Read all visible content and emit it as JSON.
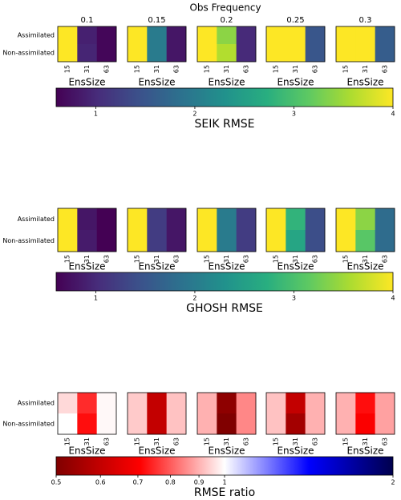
{
  "chart_data": [
    {
      "type": "heatmap",
      "suptitle": "Obs Frequency",
      "xlabel": "EnsSize",
      "x": [
        "15",
        "31",
        "63"
      ],
      "y": [
        "Assimilated",
        "Non-assimilated"
      ],
      "panels": [
        {
          "title": "0.1",
          "values": [
            [
              4,
              0.9,
              0.65
            ],
            [
              4,
              0.95,
              0.65
            ]
          ]
        },
        {
          "title": "0.15",
          "values": [
            [
              4,
              2.0,
              0.8
            ],
            [
              4,
              2.0,
              0.8
            ]
          ]
        },
        {
          "title": "0.2",
          "values": [
            [
              4,
              3.4,
              1.0
            ],
            [
              4,
              3.6,
              1.0
            ]
          ]
        },
        {
          "title": "0.25",
          "values": [
            [
              4,
              4,
              1.5
            ],
            [
              4,
              4,
              1.5
            ]
          ]
        },
        {
          "title": "0.3",
          "values": [
            [
              4,
              4,
              1.6
            ],
            [
              4,
              4,
              1.6
            ]
          ]
        }
      ],
      "colorbar": {
        "label": "SEIK RMSE",
        "lim": [
          0.6,
          4
        ],
        "ticks": [
          1,
          2,
          3,
          4
        ],
        "colormap": "viridis",
        "log": false
      }
    },
    {
      "type": "heatmap",
      "xlabel": "EnsSize",
      "x": [
        "15",
        "31",
        "63"
      ],
      "y": [
        "Assimilated",
        "Non-assimilated"
      ],
      "panels": [
        {
          "values": [
            [
              4,
              0.8,
              0.6
            ],
            [
              4,
              0.85,
              0.6
            ]
          ]
        },
        {
          "values": [
            [
              4,
              1.2,
              0.8
            ],
            [
              4,
              1.2,
              0.8
            ]
          ]
        },
        {
          "values": [
            [
              4,
              2.0,
              1.2
            ],
            [
              4,
              2.0,
              1.2
            ]
          ]
        },
        {
          "values": [
            [
              4,
              2.8,
              1.4
            ],
            [
              4,
              2.6,
              1.4
            ]
          ]
        },
        {
          "values": [
            [
              4,
              3.4,
              1.8
            ],
            [
              4,
              3.1,
              1.8
            ]
          ]
        }
      ],
      "colorbar": {
        "label": "GHOSH RMSE",
        "lim": [
          0.6,
          4
        ],
        "ticks": [
          1,
          2,
          3,
          4
        ],
        "colormap": "viridis",
        "log": false
      }
    },
    {
      "type": "heatmap",
      "xlabel": "EnsSize",
      "x": [
        "15",
        "31",
        "63"
      ],
      "y": [
        "Assimilated",
        "Non-assimilated"
      ],
      "panels": [
        {
          "values": [
            [
              0.95,
              0.75,
              0.99
            ],
            [
              1.0,
              0.72,
              0.99
            ]
          ]
        },
        {
          "values": [
            [
              0.93,
              0.6,
              0.92
            ],
            [
              0.93,
              0.6,
              0.92
            ]
          ]
        },
        {
          "values": [
            [
              0.9,
              0.52,
              0.85
            ],
            [
              0.9,
              0.5,
              0.85
            ]
          ]
        },
        {
          "values": [
            [
              0.92,
              0.6,
              0.9
            ],
            [
              0.92,
              0.55,
              0.9
            ]
          ]
        },
        {
          "values": [
            [
              0.9,
              0.72,
              0.88
            ],
            [
              0.9,
              0.7,
              0.88
            ]
          ]
        }
      ],
      "colorbar": {
        "label": "RMSE ratio",
        "lim": [
          0.5,
          2
        ],
        "ticks": [
          0.5,
          0.6,
          0.7,
          0.8,
          0.9,
          1,
          2
        ],
        "colormap": "seismic_r",
        "log": true
      }
    }
  ]
}
